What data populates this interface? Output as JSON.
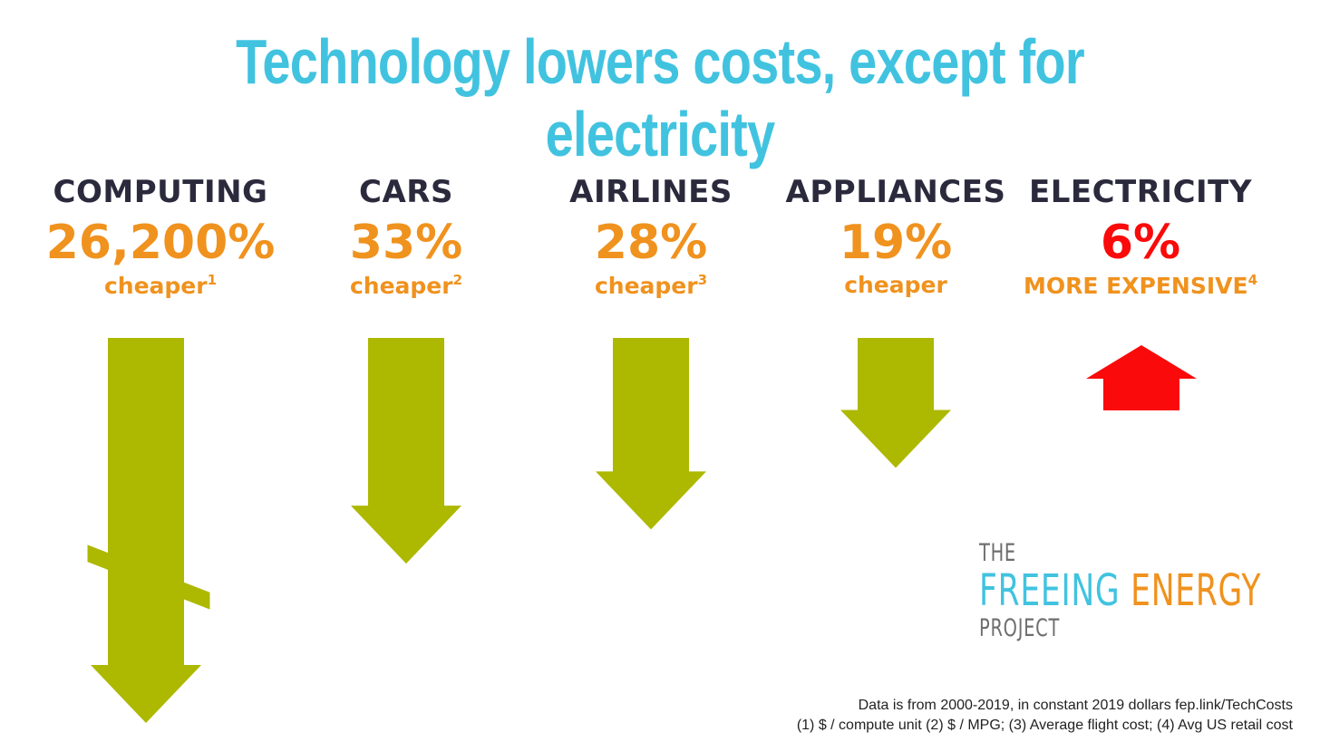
{
  "title": "Technology lowers costs, except for electricity",
  "chart_data": {
    "type": "bar",
    "categories": [
      "COMPUTING",
      "CARS",
      "AIRLINES",
      "APPLIANCES",
      "ELECTRICITY"
    ],
    "values": [
      -26200,
      -33,
      -28,
      -19,
      6
    ],
    "value_labels": [
      "26,200%",
      "33%",
      "28%",
      "19%",
      "6%"
    ],
    "direction_labels": [
      "cheaper",
      "cheaper",
      "cheaper",
      "cheaper",
      "MORE EXPENSIVE"
    ],
    "footnote_marks": [
      "1",
      "2",
      "3",
      "",
      "4"
    ],
    "unit": "%",
    "axis_break_on": "COMPUTING"
  },
  "colors": {
    "title": "#41c3e0",
    "category": "#2b2a3d",
    "cheaper": "#f0921e",
    "more_expensive_value": "#fa0a0a",
    "down_arrow": "#adb800",
    "up_arrow": "#fa0a0a"
  },
  "logo": {
    "line1": "THE",
    "line2a": "FREEING",
    "line2b": "ENERGY",
    "line3": "PROJECT"
  },
  "notes": {
    "line1": "Data is from 2000-2019, in constant 2019 dollars fep.link/TechCosts",
    "line2": "(1) $ / compute unit (2) $ / MPG; (3) Average flight cost; (4) Avg US retail cost"
  }
}
